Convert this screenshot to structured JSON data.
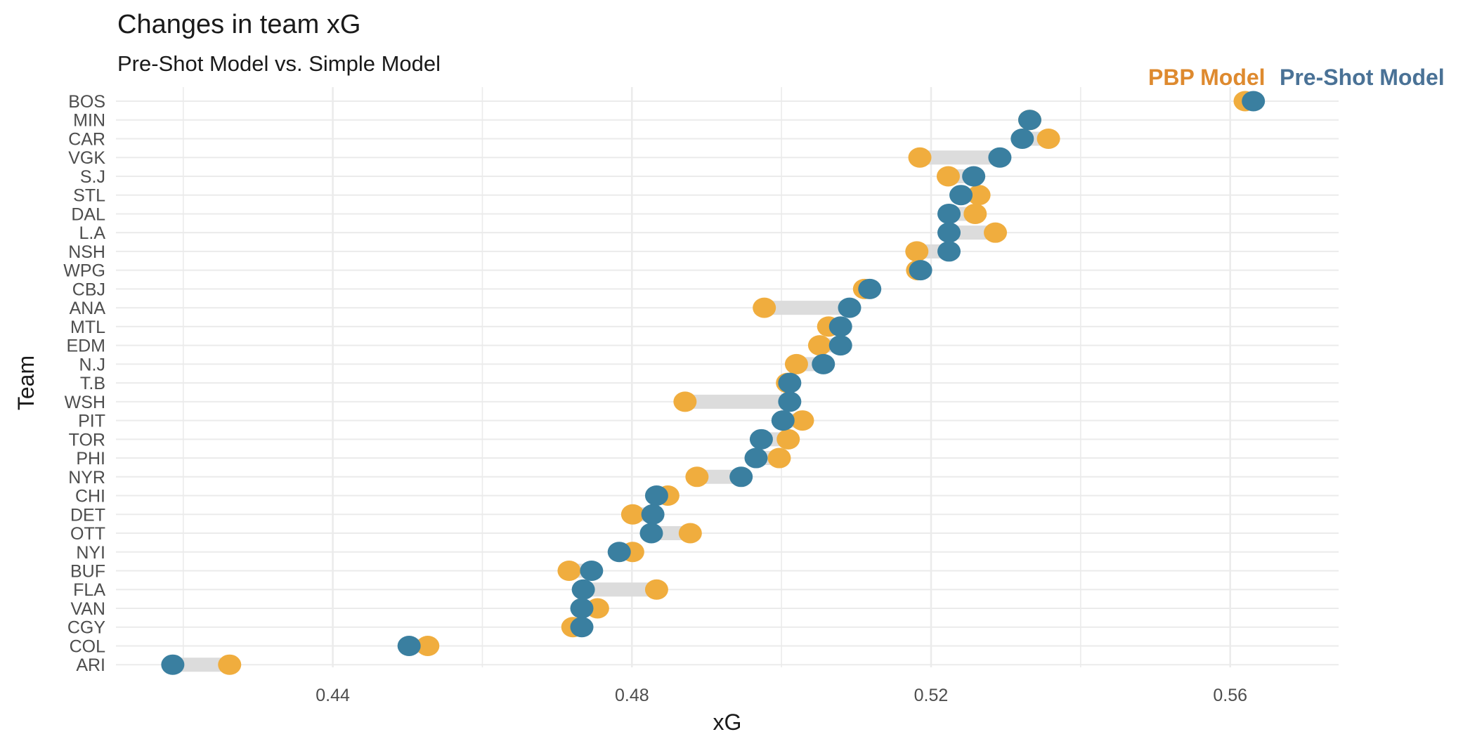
{
  "chart_data": {
    "type": "dumbbell",
    "title": "Changes in team xG",
    "subtitle": "Pre-Shot Model vs. Simple Model",
    "xlabel": "xG",
    "ylabel": "Team",
    "xlim": [
      0.411,
      0.5745
    ],
    "x_ticks": [
      0.44,
      0.48,
      0.52,
      0.56
    ],
    "x_tick_labels": [
      "0.44",
      "0.48",
      "0.52",
      "0.56"
    ],
    "grid": true,
    "legend": {
      "placement": "top-right",
      "entries": [
        {
          "name": "PBP Model",
          "color": "#DE8A2F"
        },
        {
          "name": "Pre-Shot Model",
          "color": "#4A7296"
        }
      ]
    },
    "colors": {
      "pbp_point": "#F0AD3E",
      "preshot_point": "#3A7FA0",
      "connector": "#DCDCDC",
      "grid": "#EBEBEB"
    },
    "categories": [
      "BOS",
      "MIN",
      "CAR",
      "VGK",
      "S.J",
      "STL",
      "DAL",
      "L.A",
      "NSH",
      "WPG",
      "CBJ",
      "ANA",
      "MTL",
      "EDM",
      "N.J",
      "T.B",
      "WSH",
      "PIT",
      "TOR",
      "PHI",
      "NYR",
      "CHI",
      "DET",
      "OTT",
      "NYI",
      "BUF",
      "FLA",
      "VAN",
      "CGY",
      "COL",
      "ARI"
    ],
    "series": [
      {
        "name": "PBP Model",
        "values": [
          0.562,
          0.5332,
          0.5357,
          0.5185,
          0.5223,
          0.5264,
          0.5259,
          0.5286,
          0.5181,
          0.5182,
          0.5111,
          0.4977,
          0.5063,
          0.5051,
          0.502,
          0.5008,
          0.4871,
          0.5028,
          0.5009,
          0.4997,
          0.4887,
          0.4848,
          0.4801,
          0.4878,
          0.4801,
          0.4716,
          0.4833,
          0.4754,
          0.4721,
          0.4527,
          0.4262
        ]
      },
      {
        "name": "Pre-Shot Model",
        "values": [
          0.5631,
          0.5332,
          0.5322,
          0.5292,
          0.5257,
          0.524,
          0.5224,
          0.5224,
          0.5224,
          0.5186,
          0.5118,
          0.5091,
          0.5079,
          0.5079,
          0.5056,
          0.5011,
          0.5011,
          0.5002,
          0.4973,
          0.4966,
          0.4946,
          0.4833,
          0.4828,
          0.4826,
          0.4783,
          0.4746,
          0.4735,
          0.4733,
          0.4733,
          0.4502,
          0.4186
        ]
      }
    ]
  }
}
